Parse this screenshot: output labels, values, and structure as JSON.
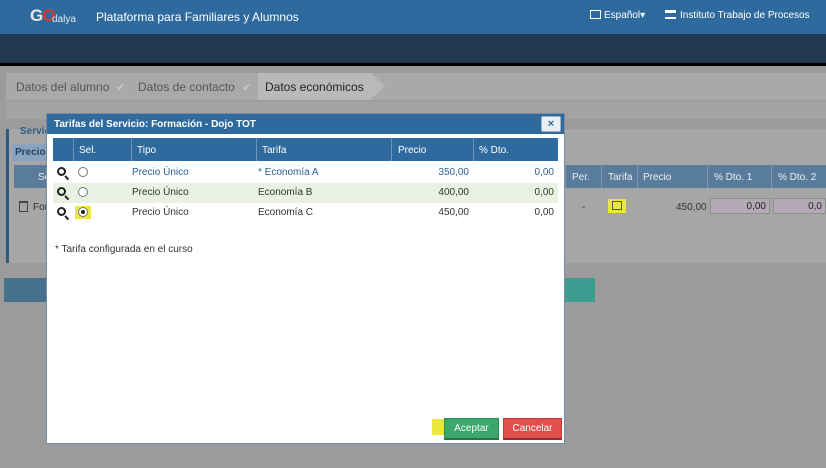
{
  "header": {
    "logo_go": "G",
    "logo_o": "O",
    "logo_dalya": "dalya",
    "title": "Plataforma para Familiares y Alumnos",
    "language": "Español",
    "institution": "Instituto Trabajo de Procesos"
  },
  "steps": [
    {
      "label": "Datos del alumno"
    },
    {
      "label": "Datos de contacto"
    },
    {
      "label": "Datos económicos"
    }
  ],
  "background": {
    "panel_title": "Servic",
    "precio_tab": "Precio",
    "col_se": "Se",
    "col_per": "Per.",
    "col_tarifa": "Tarifa",
    "col_precio": "Precio",
    "col_dto1": "% Dto. 1",
    "col_dto2": "% Dto. 2",
    "row_name": "For",
    "row_dash": "-",
    "row_precio": "450,00",
    "row_dto1": "0,00",
    "row_dto2": "0,0"
  },
  "modal": {
    "title": "Tarifas del Servicio: Formación - Dojo TOT",
    "close": "×",
    "columns": {
      "sel": "Sel.",
      "tipo": "Tipo",
      "tarifa": "Tarifa",
      "precio": "Precio",
      "dto": "% Dto."
    },
    "rows": [
      {
        "tipo": "Precio Único",
        "tarifa": "* Economía A",
        "precio": "350,00",
        "dto": "0,00",
        "selected": false
      },
      {
        "tipo": "Precio Único",
        "tarifa": "Economía B",
        "precio": "400,00",
        "dto": "0,00",
        "selected": false
      },
      {
        "tipo": "Precio Único",
        "tarifa": "Economía C",
        "precio": "450,00",
        "dto": "0,00",
        "selected": true
      }
    ],
    "note": "* Tarifa configurada en el curso",
    "accept_label": "Aceptar",
    "cancel_label": "Cancelar"
  },
  "colors": {
    "header_blue": "#2f6a9e",
    "highlight": "#e9e83b",
    "accept_green": "#3aa86a",
    "cancel_red": "#e04f4b"
  }
}
